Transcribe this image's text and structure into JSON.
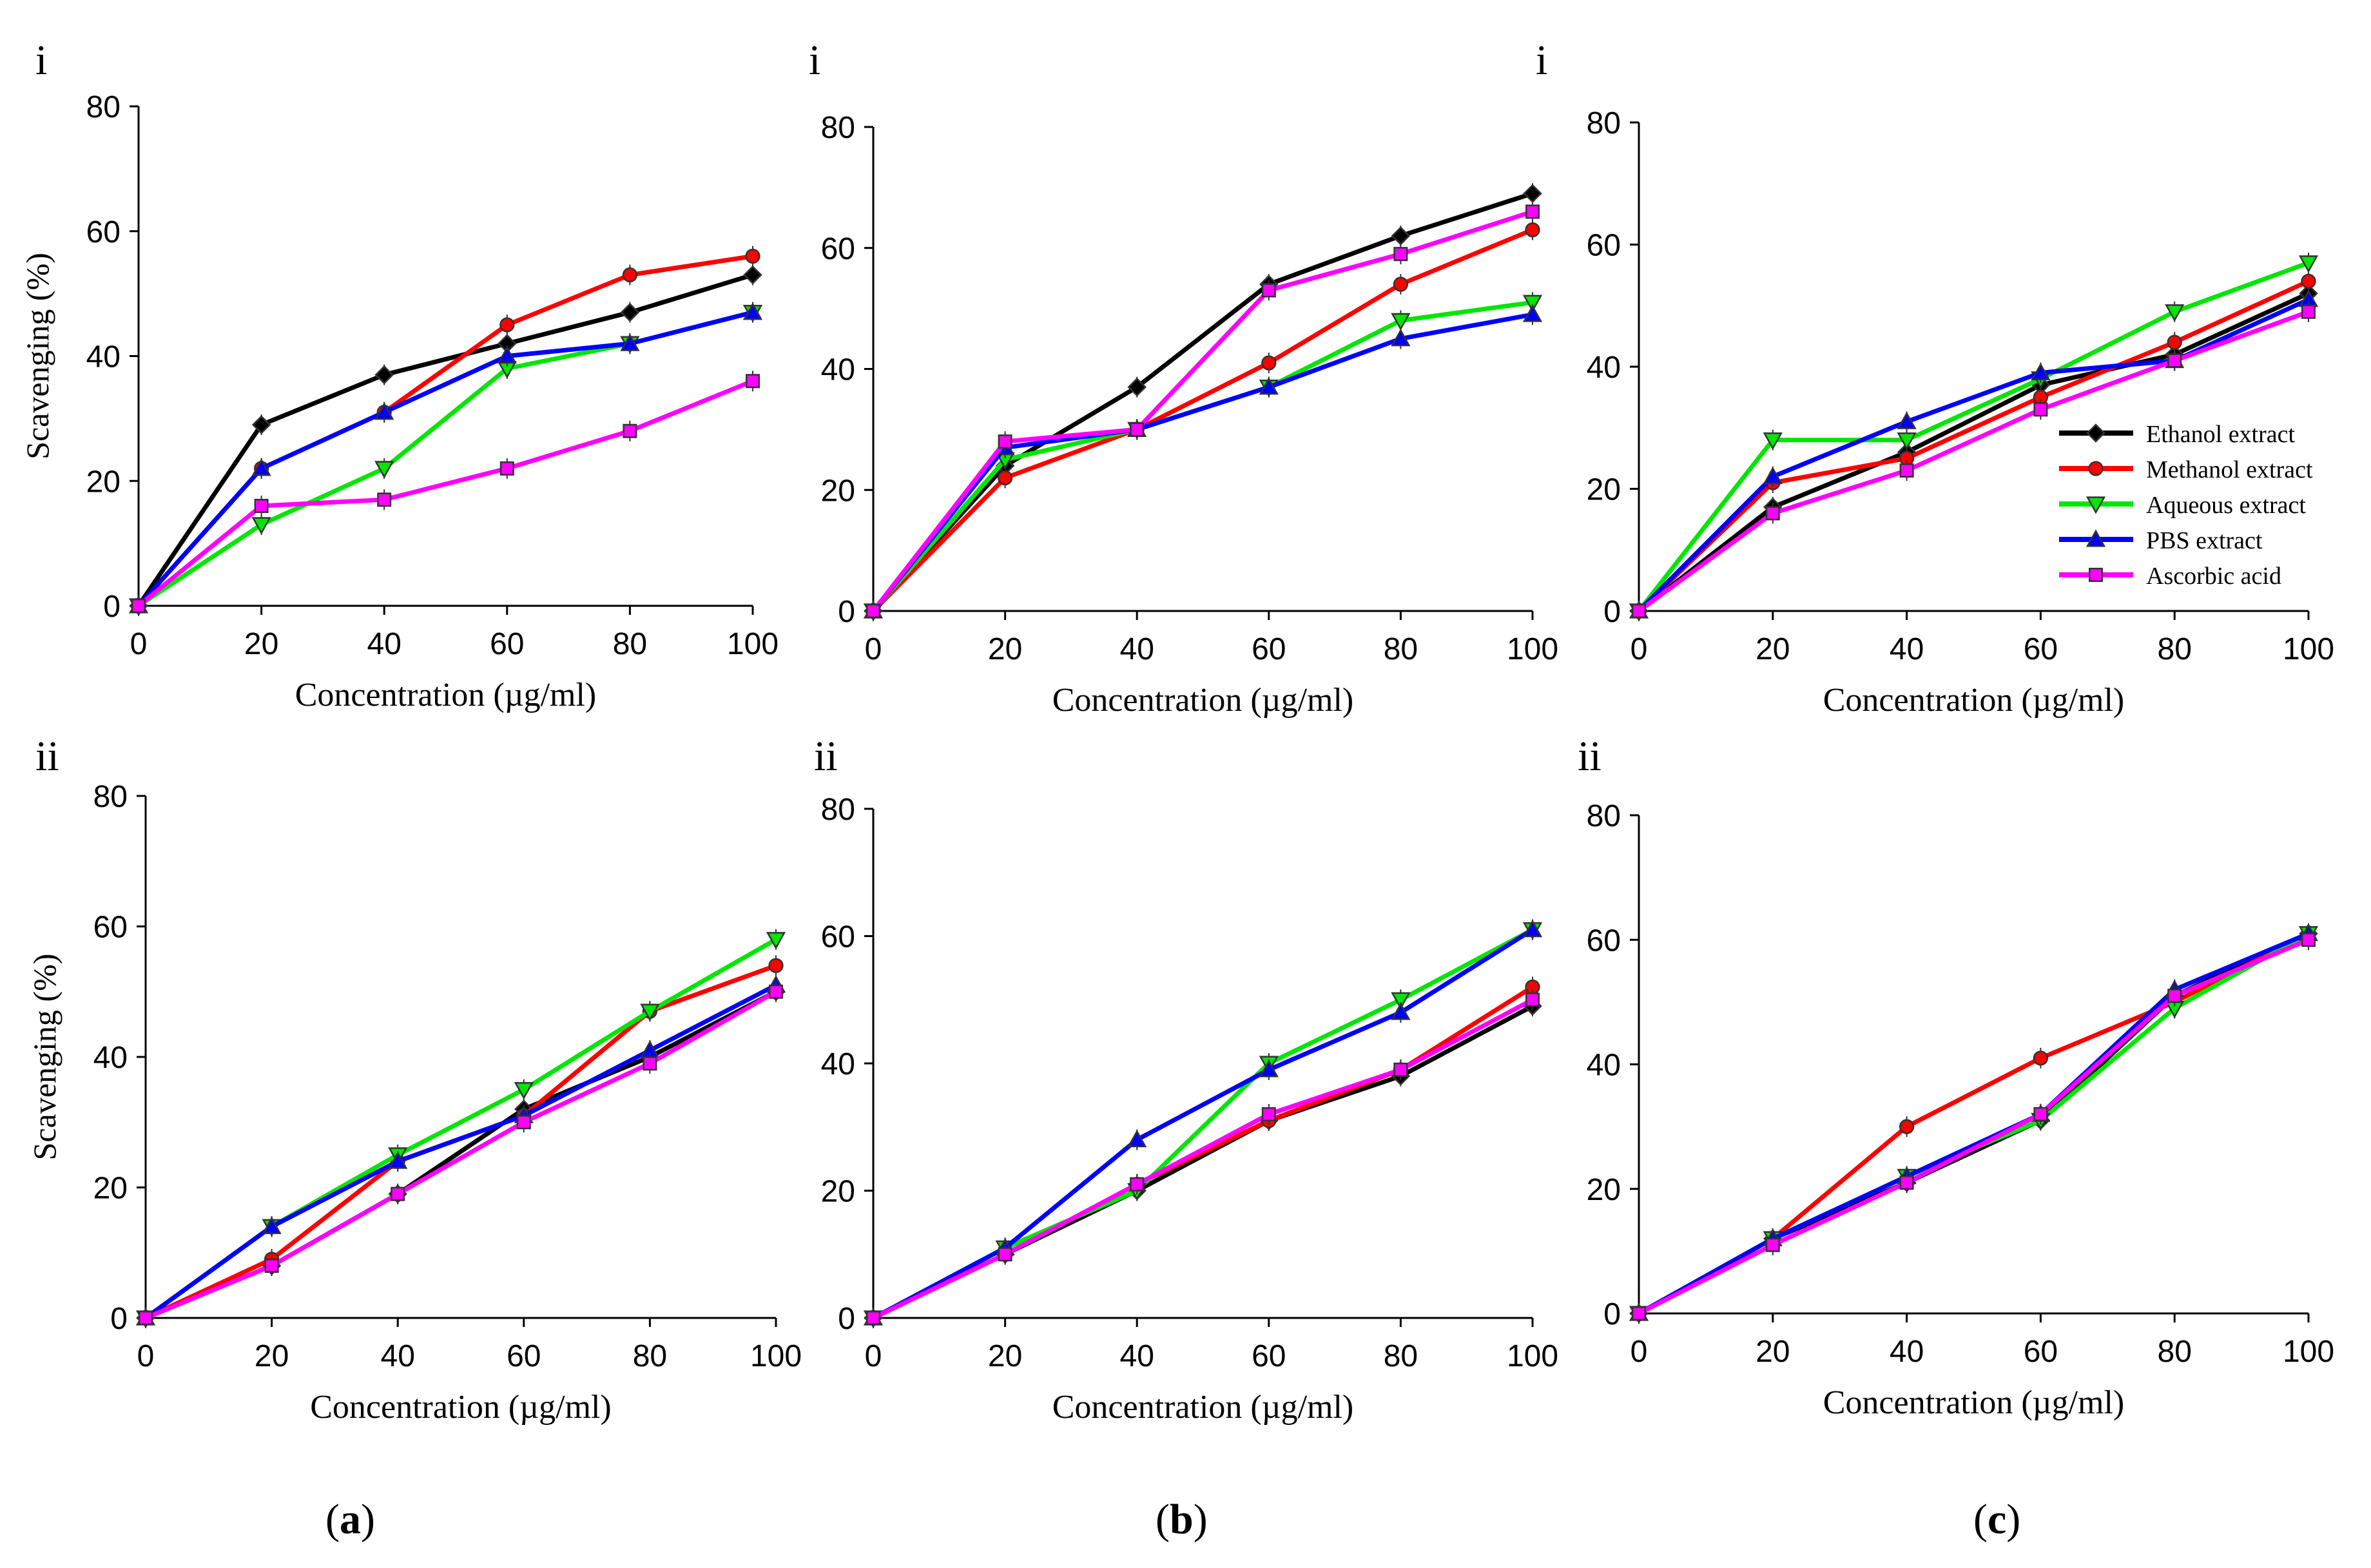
{
  "series_colors": {
    "Ethanol extract": "#000000",
    "Methanol extract": "#ff0000",
    "Aqueous extract": "#00e600",
    "PBS extract": "#0000ff",
    "Ascorbic acid": "#ff00ff"
  },
  "series_markers": {
    "Ethanol extract": "diamond",
    "Methanol extract": "circle",
    "Aqueous extract": "triangle-down",
    "PBS extract": "triangle-up",
    "Ascorbic acid": "square"
  },
  "panel_labels": [
    {
      "open": "(",
      "letter": "a",
      "close": ")"
    },
    {
      "open": "(",
      "letter": "b",
      "close": ")"
    },
    {
      "open": "(",
      "letter": "c",
      "close": ")"
    }
  ],
  "chart_data": [
    {
      "type": "line",
      "row_label": "i",
      "column": "a",
      "xlabel": "Concentration (µg/ml)",
      "ylabel": "Scavenging (%)",
      "x": [
        0,
        20,
        40,
        60,
        80,
        100
      ],
      "xlim": [
        0,
        100
      ],
      "ylim": [
        0,
        80
      ],
      "xticks": [
        "0",
        "20",
        "40",
        "60",
        "80",
        "100"
      ],
      "yticks": [
        "0",
        "20",
        "40",
        "60",
        "80"
      ],
      "legend": false,
      "series": [
        {
          "name": "Ethanol extract",
          "values": [
            0,
            29,
            37,
            42,
            47,
            53
          ]
        },
        {
          "name": "Methanol extract",
          "values": [
            0,
            22,
            31,
            45,
            53,
            56
          ]
        },
        {
          "name": "Aqueous extract",
          "values": [
            0,
            13,
            22,
            38,
            42,
            47
          ]
        },
        {
          "name": "PBS extract",
          "values": [
            0,
            22,
            31,
            40,
            42,
            47
          ]
        },
        {
          "name": "Ascorbic acid",
          "values": [
            0,
            16,
            17,
            22,
            28,
            36
          ]
        }
      ]
    },
    {
      "type": "line",
      "row_label": "i",
      "column": "b",
      "xlabel": "Concentration (µg/ml)",
      "ylabel": "",
      "x": [
        0,
        20,
        40,
        60,
        80,
        100
      ],
      "xlim": [
        0,
        100
      ],
      "ylim": [
        0,
        80
      ],
      "xticks": [
        "0",
        "20",
        "40",
        "60",
        "80",
        "100"
      ],
      "yticks": [
        "0",
        "20",
        "40",
        "60",
        "80"
      ],
      "legend": false,
      "series": [
        {
          "name": "Ethanol extract",
          "values": [
            0,
            24,
            37,
            54,
            62,
            69
          ]
        },
        {
          "name": "Methanol extract",
          "values": [
            0,
            22,
            30,
            41,
            54,
            63
          ]
        },
        {
          "name": "Aqueous extract",
          "values": [
            0,
            25,
            30,
            37,
            48,
            51
          ]
        },
        {
          "name": "PBS extract",
          "values": [
            0,
            27,
            30,
            37,
            45,
            49
          ]
        },
        {
          "name": "Ascorbic acid",
          "values": [
            0,
            28,
            30,
            53,
            59,
            66
          ]
        }
      ]
    },
    {
      "type": "line",
      "row_label": "i",
      "column": "c",
      "xlabel": "Concentration (µg/ml)",
      "ylabel": "",
      "x": [
        0,
        20,
        40,
        60,
        80,
        100
      ],
      "xlim": [
        0,
        100
      ],
      "ylim": [
        0,
        80
      ],
      "xticks": [
        "0",
        "20",
        "40",
        "60",
        "80",
        "100"
      ],
      "yticks": [
        "0",
        "20",
        "40",
        "60",
        "80"
      ],
      "legend": true,
      "series": [
        {
          "name": "Ethanol extract",
          "values": [
            0,
            17,
            26,
            37,
            42,
            52
          ]
        },
        {
          "name": "Methanol extract",
          "values": [
            0,
            21,
            25,
            35,
            44,
            54
          ]
        },
        {
          "name": "Aqueous extract",
          "values": [
            0,
            28,
            28,
            38,
            49,
            57
          ]
        },
        {
          "name": "PBS extract",
          "values": [
            0,
            22,
            31,
            39,
            41,
            51
          ]
        },
        {
          "name": "Ascorbic acid",
          "values": [
            0,
            16,
            23,
            33,
            41,
            49
          ]
        }
      ]
    },
    {
      "type": "line",
      "row_label": "ii",
      "column": "a",
      "xlabel": "Concentration (µg/ml)",
      "ylabel": "Scavenging (%)",
      "x": [
        0,
        20,
        40,
        60,
        80,
        100
      ],
      "xlim": [
        0,
        100
      ],
      "ylim": [
        0,
        80
      ],
      "xticks": [
        "0",
        "20",
        "40",
        "60",
        "80",
        "100"
      ],
      "yticks": [
        "0",
        "20",
        "40",
        "60",
        "80"
      ],
      "legend": false,
      "series": [
        {
          "name": "Ethanol extract",
          "values": [
            0,
            8,
            19,
            32,
            40,
            50
          ]
        },
        {
          "name": "Methanol extract",
          "values": [
            0,
            9,
            24,
            31,
            47,
            54
          ]
        },
        {
          "name": "Aqueous extract",
          "values": [
            0,
            14,
            25,
            35,
            47,
            58
          ]
        },
        {
          "name": "PBS extract",
          "values": [
            0,
            14,
            24,
            31,
            41,
            51
          ]
        },
        {
          "name": "Ascorbic acid",
          "values": [
            0,
            8,
            19,
            30,
            39,
            50
          ]
        }
      ]
    },
    {
      "type": "line",
      "row_label": "ii",
      "column": "b",
      "xlabel": "Concentration (µg/ml)",
      "ylabel": "",
      "x": [
        0,
        20,
        40,
        60,
        80,
        100
      ],
      "xlim": [
        0,
        100
      ],
      "ylim": [
        0,
        80
      ],
      "xticks": [
        "0",
        "20",
        "40",
        "60",
        "80",
        "100"
      ],
      "yticks": [
        "0",
        "20",
        "40",
        "60",
        "80"
      ],
      "legend": false,
      "series": [
        {
          "name": "Ethanol extract",
          "values": [
            0,
            10,
            20,
            31,
            38,
            49
          ]
        },
        {
          "name": "Methanol extract",
          "values": [
            0,
            10,
            21,
            31,
            39,
            52
          ]
        },
        {
          "name": "Aqueous extract",
          "values": [
            0,
            11,
            20,
            40,
            50,
            61
          ]
        },
        {
          "name": "PBS extract",
          "values": [
            0,
            11,
            28,
            39,
            48,
            61
          ]
        },
        {
          "name": "Ascorbic acid",
          "values": [
            0,
            10,
            21,
            32,
            39,
            50
          ]
        }
      ]
    },
    {
      "type": "line",
      "row_label": "ii",
      "column": "c",
      "xlabel": "Concentration (µg/ml)",
      "ylabel": "",
      "x": [
        0,
        20,
        40,
        60,
        80,
        100
      ],
      "xlim": [
        0,
        100
      ],
      "ylim": [
        0,
        80
      ],
      "xticks": [
        "0",
        "20",
        "40",
        "60",
        "80",
        "100"
      ],
      "yticks": [
        "0",
        "20",
        "40",
        "60",
        "80"
      ],
      "legend": false,
      "series": [
        {
          "name": "Ethanol extract",
          "values": [
            0,
            12,
            21,
            31,
            51,
            61
          ]
        },
        {
          "name": "Methanol extract",
          "values": [
            0,
            12,
            30,
            41,
            50,
            61
          ]
        },
        {
          "name": "Aqueous extract",
          "values": [
            0,
            12,
            22,
            31,
            49,
            61
          ]
        },
        {
          "name": "PBS extract",
          "values": [
            0,
            12,
            22,
            32,
            52,
            61
          ]
        },
        {
          "name": "Ascorbic acid",
          "values": [
            0,
            11,
            21,
            32,
            51,
            60
          ]
        }
      ]
    }
  ]
}
